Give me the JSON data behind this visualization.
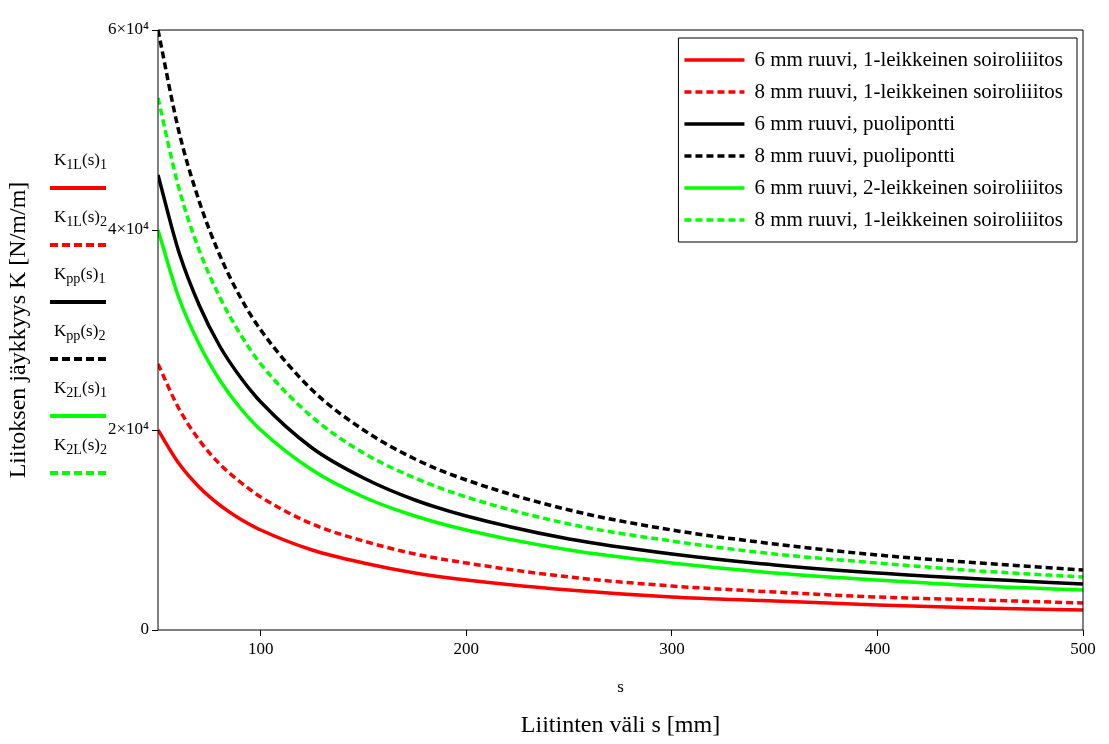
{
  "chart_data": {
    "type": "line",
    "xlabel": "Liitinten väli s [mm]",
    "ylabel": "Liitoksen jäykkyys K [N/m/m]",
    "x": [
      50,
      60,
      70,
      80,
      90,
      100,
      125,
      150,
      175,
      200,
      250,
      300,
      350,
      400,
      450,
      500
    ],
    "xlim": [
      50,
      500
    ],
    "xticks": [
      100,
      200,
      300,
      400,
      500
    ],
    "ylim": [
      0,
      60000
    ],
    "yticks": [
      {
        "value": 0,
        "label": "0"
      },
      {
        "value": 20000,
        "label": "2×10⁴"
      },
      {
        "value": 40000,
        "label": "4×10⁴"
      },
      {
        "value": 60000,
        "label": "6×10⁴"
      }
    ],
    "grid": false,
    "legend": "top right",
    "marker": "none",
    "series": [
      {
        "name": "6 mm ruuvi, 1-leikkeinen soiroliiitos",
        "color": "#ff0000",
        "line_style": "solid",
        "values": [
          20000,
          16700,
          14300,
          12500,
          11100,
          10000,
          8000,
          6700,
          5700,
          5000,
          4000,
          3300,
          2900,
          2500,
          2200,
          2000
        ]
      },
      {
        "name": "8 mm ruuvi, 1-leikkeinen soiroliiitos",
        "color": "#ff0000",
        "line_style": "dashed",
        "values": [
          26600,
          22200,
          19000,
          16600,
          14800,
          13300,
          10600,
          8900,
          7600,
          6700,
          5300,
          4400,
          3800,
          3300,
          3000,
          2700
        ]
      },
      {
        "name": "6 mm ruuvi, puolipontti",
        "color": "#000000",
        "line_style": "solid",
        "values": [
          45500,
          37900,
          32500,
          28400,
          25300,
          22800,
          18200,
          15200,
          13000,
          11400,
          9100,
          7600,
          6500,
          5700,
          5100,
          4600
        ]
      },
      {
        "name": "8 mm ruuvi, puolipontti",
        "color": "#000000",
        "line_style": "dashed",
        "values": [
          60000,
          50000,
          42900,
          37500,
          33300,
          30000,
          24000,
          20000,
          17100,
          15000,
          12000,
          10000,
          8600,
          7500,
          6700,
          6000
        ]
      },
      {
        "name": "6 mm ruuvi, 2-leikkeinen soiroliiitos",
        "color": "#00ff00",
        "line_style": "solid",
        "values": [
          40000,
          33300,
          28600,
          25000,
          22200,
          20000,
          16000,
          13300,
          11400,
          10000,
          8000,
          6700,
          5700,
          5000,
          4400,
          4000
        ]
      },
      {
        "name": "8 mm ruuvi, 1-leikkeinen soiroliiitos",
        "color": "#00ff00",
        "line_style": "dashed",
        "values": [
          53200,
          44300,
          38000,
          33300,
          29600,
          26600,
          21300,
          17700,
          15200,
          13300,
          10600,
          8900,
          7600,
          6700,
          5900,
          5300
        ]
      }
    ],
    "annotations": [
      "s",
      "K$_{1L}$(s)$_{1}$",
      "K$_{1L}$(s)$_{2}$",
      "K$_{pp}$(s)$_{1}$",
      "K$_{pp}$(s)$_{2}$",
      "K$_{2L}$(s)$_{1}$",
      "K$_{2L}$(s)$_{2}$"
    ]
  }
}
